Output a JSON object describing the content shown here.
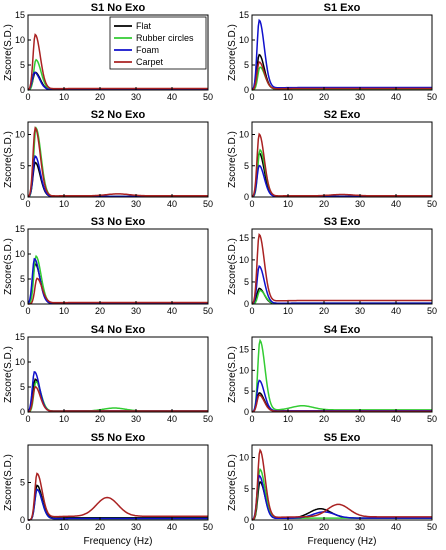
{
  "axes": {
    "ylabel": "Zscore(S.D.)",
    "xlabel": "Frequency (Hz)",
    "xticks": [
      "0",
      "10",
      "20",
      "30",
      "40",
      "50"
    ]
  },
  "legend": {
    "position": "top-right of first panel",
    "entries": [
      "Flat",
      "Rubber circles",
      "Foam",
      "Carpet"
    ]
  },
  "colors": {
    "Flat": "#000000",
    "Rubber circles": "#33cc33",
    "Foam": "#1010cc",
    "Carpet": "#aa2222"
  },
  "chart_data": [
    {
      "type": "line",
      "title": "S1 No Exo",
      "ylim": [
        0,
        15
      ],
      "yticks": [
        0,
        5,
        10,
        15
      ],
      "xlim": [
        0,
        50
      ],
      "series": [
        {
          "name": "Flat",
          "peak": 3.5,
          "peak_x": 2,
          "tail": 0.1,
          "bump_x": 0,
          "bump": 0
        },
        {
          "name": "Rubber circles",
          "peak": 6.0,
          "peak_x": 2.2,
          "tail": 0.1,
          "bump_x": 0,
          "bump": 0
        },
        {
          "name": "Foam",
          "peak": 3.5,
          "peak_x": 1.8,
          "tail": 0.1,
          "bump_x": 0,
          "bump": 0
        },
        {
          "name": "Carpet",
          "peak": 11.0,
          "peak_x": 2,
          "tail": 0.3,
          "bump_x": 0,
          "bump": 0
        }
      ]
    },
    {
      "type": "line",
      "title": "S1 Exo",
      "ylim": [
        0,
        15
      ],
      "yticks": [
        0,
        5,
        10,
        15
      ],
      "xlim": [
        0,
        50
      ],
      "series": [
        {
          "name": "Flat",
          "peak": 7.0,
          "peak_x": 2,
          "tail": 0.2,
          "bump_x": 0,
          "bump": 0
        },
        {
          "name": "Rubber circles",
          "peak": 4.5,
          "peak_x": 2.2,
          "tail": 0.2,
          "bump_x": 0,
          "bump": 0
        },
        {
          "name": "Foam",
          "peak": 13.8,
          "peak_x": 2,
          "tail": 0.5,
          "bump_x": 0,
          "bump": 0
        },
        {
          "name": "Carpet",
          "peak": 5.5,
          "peak_x": 2,
          "tail": 0.3,
          "bump_x": 0,
          "bump": 0
        }
      ]
    },
    {
      "type": "line",
      "title": "S2 No Exo",
      "ylim": [
        0,
        12
      ],
      "yticks": [
        0,
        5,
        10
      ],
      "xlim": [
        0,
        50
      ],
      "series": [
        {
          "name": "Flat",
          "peak": 5.5,
          "peak_x": 2,
          "tail": 0.1,
          "bump_x": 0,
          "bump": 0
        },
        {
          "name": "Rubber circles",
          "peak": 11.0,
          "peak_x": 2.2,
          "tail": 0.1,
          "bump_x": 0,
          "bump": 0
        },
        {
          "name": "Foam",
          "peak": 6.5,
          "peak_x": 2,
          "tail": 0.1,
          "bump_x": 0,
          "bump": 0
        },
        {
          "name": "Carpet",
          "peak": 11.0,
          "peak_x": 2,
          "tail": 0.2,
          "bump_x": 25,
          "bump": 0.3
        }
      ]
    },
    {
      "type": "line",
      "title": "S2 Exo",
      "ylim": [
        0,
        12
      ],
      "yticks": [
        0,
        5,
        10
      ],
      "xlim": [
        0,
        50
      ],
      "series": [
        {
          "name": "Flat",
          "peak": 7.0,
          "peak_x": 2,
          "tail": 0.1,
          "bump_x": 0,
          "bump": 0
        },
        {
          "name": "Rubber circles",
          "peak": 7.5,
          "peak_x": 2.2,
          "tail": 0.1,
          "bump_x": 0,
          "bump": 0
        },
        {
          "name": "Foam",
          "peak": 5.0,
          "peak_x": 2,
          "tail": 0.1,
          "bump_x": 0,
          "bump": 0
        },
        {
          "name": "Carpet",
          "peak": 10.0,
          "peak_x": 2,
          "tail": 0.2,
          "bump_x": 25,
          "bump": 0.2
        }
      ]
    },
    {
      "type": "line",
      "title": "S3 No Exo",
      "ylim": [
        0,
        15
      ],
      "yticks": [
        0,
        5,
        10,
        15
      ],
      "xlim": [
        0,
        50
      ],
      "series": [
        {
          "name": "Flat",
          "peak": 8.0,
          "peak_x": 2,
          "tail": 0.1,
          "bump_x": 0,
          "bump": 0
        },
        {
          "name": "Rubber circles",
          "peak": 9.5,
          "peak_x": 2.2,
          "tail": 0.2,
          "bump_x": 0,
          "bump": 0
        },
        {
          "name": "Foam",
          "peak": 9.0,
          "peak_x": 1.8,
          "tail": 0.2,
          "bump_x": 0,
          "bump": 0
        },
        {
          "name": "Carpet",
          "peak": 5.0,
          "peak_x": 2.5,
          "tail": 0.3,
          "bump_x": 0,
          "bump": 0
        }
      ]
    },
    {
      "type": "line",
      "title": "S3 Exo",
      "ylim": [
        0,
        17
      ],
      "yticks": [
        0,
        5,
        10,
        15
      ],
      "xlim": [
        0,
        50
      ],
      "series": [
        {
          "name": "Flat",
          "peak": 3.5,
          "peak_x": 2,
          "tail": 0.1,
          "bump_x": 0,
          "bump": 0
        },
        {
          "name": "Rubber circles",
          "peak": 3.0,
          "peak_x": 2.2,
          "tail": 0.2,
          "bump_x": 0,
          "bump": 0
        },
        {
          "name": "Foam",
          "peak": 8.5,
          "peak_x": 2,
          "tail": 0.2,
          "bump_x": 0,
          "bump": 0
        },
        {
          "name": "Carpet",
          "peak": 15.5,
          "peak_x": 2,
          "tail": 0.8,
          "bump_x": 0,
          "bump": 0
        }
      ]
    },
    {
      "type": "line",
      "title": "S4 No Exo",
      "ylim": [
        0,
        15
      ],
      "yticks": [
        0,
        5,
        10,
        15
      ],
      "xlim": [
        0,
        50
      ],
      "series": [
        {
          "name": "Flat",
          "peak": 6.5,
          "peak_x": 2,
          "tail": 0.2,
          "bump_x": 0,
          "bump": 0
        },
        {
          "name": "Rubber circles",
          "peak": 6.0,
          "peak_x": 2.2,
          "tail": 0.2,
          "bump_x": 24,
          "bump": 0.6
        },
        {
          "name": "Foam",
          "peak": 8.0,
          "peak_x": 1.8,
          "tail": 0.2,
          "bump_x": 0,
          "bump": 0
        },
        {
          "name": "Carpet",
          "peak": 5.0,
          "peak_x": 2,
          "tail": 0.2,
          "bump_x": 0,
          "bump": 0
        }
      ]
    },
    {
      "type": "line",
      "title": "S4 Exo",
      "ylim": [
        0,
        18
      ],
      "yticks": [
        0,
        5,
        10,
        15
      ],
      "xlim": [
        0,
        50
      ],
      "series": [
        {
          "name": "Flat",
          "peak": 4.5,
          "peak_x": 2,
          "tail": 0.3,
          "bump_x": 0,
          "bump": 0
        },
        {
          "name": "Rubber circles",
          "peak": 17.0,
          "peak_x": 2.2,
          "tail": 0.5,
          "bump_x": 14,
          "bump": 1.0
        },
        {
          "name": "Foam",
          "peak": 7.5,
          "peak_x": 2,
          "tail": 0.3,
          "bump_x": 0,
          "bump": 0
        },
        {
          "name": "Carpet",
          "peak": 4.0,
          "peak_x": 2,
          "tail": 0.2,
          "bump_x": 0,
          "bump": 0
        }
      ]
    },
    {
      "type": "line",
      "title": "S5 No Exo",
      "ylim": [
        0,
        10
      ],
      "yticks": [
        0,
        5
      ],
      "xlim": [
        0,
        50
      ],
      "series": [
        {
          "name": "Flat",
          "peak": 4.5,
          "peak_x": 2.5,
          "tail": 0.3,
          "bump_x": 0,
          "bump": 0
        },
        {
          "name": "Rubber circles",
          "peak": 4.0,
          "peak_x": 2.5,
          "tail": 0.2,
          "bump_x": 0,
          "bump": 0
        },
        {
          "name": "Foam",
          "peak": 4.0,
          "peak_x": 2.5,
          "tail": 0.2,
          "bump_x": 0,
          "bump": 0
        },
        {
          "name": "Carpet",
          "peak": 6.0,
          "peak_x": 2.5,
          "tail": 0.5,
          "bump_x": 22,
          "bump": 2.5
        }
      ]
    },
    {
      "type": "line",
      "title": "S5 Exo",
      "ylim": [
        0,
        12
      ],
      "yticks": [
        0,
        5,
        10
      ],
      "xlim": [
        0,
        50
      ],
      "series": [
        {
          "name": "Flat",
          "peak": 6.0,
          "peak_x": 2.2,
          "tail": 0.3,
          "bump_x": 19,
          "bump": 1.5
        },
        {
          "name": "Rubber circles",
          "peak": 8.0,
          "peak_x": 2.2,
          "tail": 0.3,
          "bump_x": 0,
          "bump": 0
        },
        {
          "name": "Foam",
          "peak": 7.0,
          "peak_x": 2,
          "tail": 0.3,
          "bump_x": 20,
          "bump": 1.0
        },
        {
          "name": "Carpet",
          "peak": 11.0,
          "peak_x": 2.2,
          "tail": 0.5,
          "bump_x": 24,
          "bump": 2.0
        }
      ]
    }
  ]
}
